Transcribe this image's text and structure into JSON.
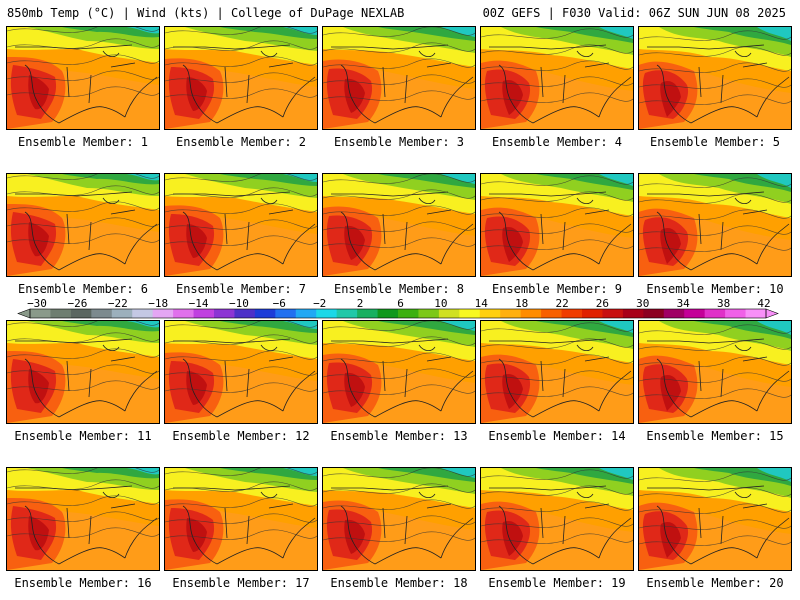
{
  "header": {
    "left": "850mb Temp (°C) | Wind (kts) | College of DuPage NEXLAB",
    "right": "00Z GEFS | F030 Valid: 06Z SUN JUN 08 2025"
  },
  "panel_label_prefix": "Ensemble Member: ",
  "members": [
    1,
    2,
    3,
    4,
    5,
    6,
    7,
    8,
    9,
    10,
    11,
    12,
    13,
    14,
    15,
    16,
    17,
    18,
    19,
    20
  ],
  "colorbar": {
    "labels": [
      "-30",
      "-26",
      "-22",
      "-18",
      "-14",
      "-10",
      "-6",
      "-2",
      "2",
      "6",
      "10",
      "14",
      "18",
      "22",
      "26",
      "30",
      "34",
      "38",
      "42"
    ],
    "colors": [
      "#8a9a8a",
      "#6e7e70",
      "#5a6660",
      "#7c8a8e",
      "#9cb0bc",
      "#c4c8e4",
      "#e4a6f4",
      "#e070ec",
      "#c040e0",
      "#8c34d4",
      "#4c30c8",
      "#1c3cd8",
      "#2070f0",
      "#20a8f4",
      "#1cd8e8",
      "#20c8a8",
      "#18b060",
      "#10981c",
      "#3cb010",
      "#7cc818",
      "#d0e020",
      "#f8f820",
      "#ffd010",
      "#ffb010",
      "#ff8c00",
      "#f86000",
      "#f03c00",
      "#e02000",
      "#c81010",
      "#a80018",
      "#8c0020",
      "#a00064",
      "#c40098",
      "#e030c8",
      "#f060e8",
      "#f890f8"
    ]
  },
  "map_colors": {
    "cold": "#20c8c0",
    "cool": "#30a840",
    "mild": "#90d020",
    "warm": "#f8f020",
    "hot": "#ffa000",
    "hotter": "#f86010",
    "hottest": "#e02818",
    "extreme": "#c01010",
    "ocean": "#ff9c18"
  }
}
